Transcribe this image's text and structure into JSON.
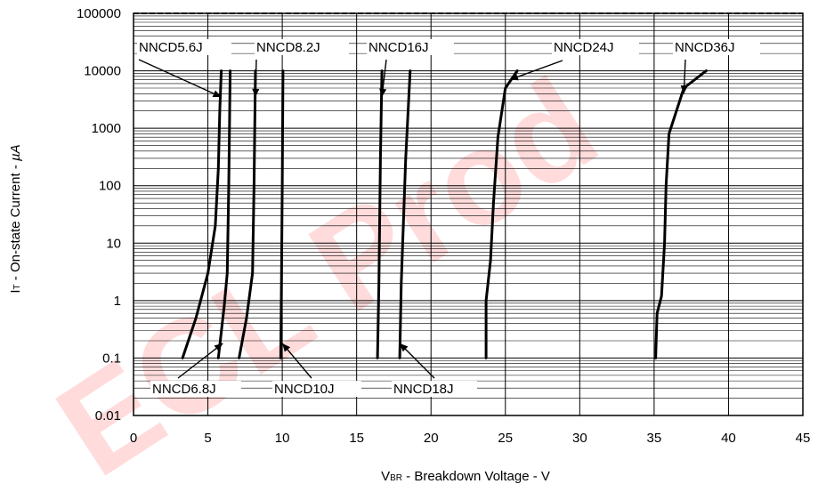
{
  "chart_data": {
    "type": "line",
    "title": "",
    "xlabel_main": "V",
    "xlabel_sub": "BR",
    "xlabel_rest": " - Breakdown Voltage - V",
    "ylabel_main": "I",
    "ylabel_sub": "T",
    "ylabel_rest": " - On-state Current - ",
    "ylabel_unit": "µA",
    "xlim": [
      0,
      45
    ],
    "ylim": [
      0.01,
      100000
    ],
    "y_scale": "log",
    "grid": true,
    "x_ticks": [
      "0",
      "5",
      "10",
      "15",
      "20",
      "25",
      "30",
      "35",
      "40",
      "45"
    ],
    "y_ticks": [
      "0.01",
      "0.1",
      "1",
      "10",
      "100",
      "1000",
      "10000",
      "100000"
    ],
    "series": [
      {
        "name": "NNCD5.6J",
        "points": [
          [
            3.3,
            0.1
          ],
          [
            4.2,
            0.5
          ],
          [
            5.0,
            3
          ],
          [
            5.5,
            20
          ],
          [
            5.7,
            200
          ],
          [
            5.8,
            2000
          ],
          [
            5.9,
            10000
          ]
        ]
      },
      {
        "name": "NNCD6.8J",
        "points": [
          [
            5.7,
            0.1
          ],
          [
            6.1,
            0.8
          ],
          [
            6.3,
            3
          ],
          [
            6.4,
            100
          ],
          [
            6.5,
            10000
          ]
        ]
      },
      {
        "name": "NNCD8.2J",
        "points": [
          [
            7.1,
            0.1
          ],
          [
            7.6,
            0.5
          ],
          [
            8.0,
            3
          ],
          [
            8.1,
            100
          ],
          [
            8.2,
            10000
          ]
        ]
      },
      {
        "name": "NNCD10J",
        "points": [
          [
            9.9,
            0.1
          ],
          [
            9.95,
            3
          ],
          [
            10.0,
            100
          ],
          [
            10.05,
            10000
          ]
        ]
      },
      {
        "name": "NNCD16J",
        "points": [
          [
            16.4,
            0.1
          ],
          [
            16.5,
            2
          ],
          [
            16.6,
            300
          ],
          [
            16.7,
            10000
          ]
        ]
      },
      {
        "name": "NNCD18J",
        "points": [
          [
            17.9,
            0.1
          ],
          [
            18.0,
            2
          ],
          [
            18.3,
            300
          ],
          [
            18.6,
            10000
          ]
        ]
      },
      {
        "name": "NNCD24J",
        "points": [
          [
            23.7,
            0.1
          ],
          [
            23.7,
            1
          ],
          [
            24.0,
            5
          ],
          [
            24.2,
            50
          ],
          [
            24.5,
            700
          ],
          [
            25.0,
            5000
          ],
          [
            25.8,
            10000
          ]
        ]
      },
      {
        "name": "NNCD36J",
        "points": [
          [
            35.1,
            0.1
          ],
          [
            35.2,
            0.6
          ],
          [
            35.5,
            1.2
          ],
          [
            35.7,
            10
          ],
          [
            35.8,
            100
          ],
          [
            36.0,
            800
          ],
          [
            37.0,
            5000
          ],
          [
            38.5,
            10000
          ]
        ]
      }
    ],
    "annotations": [
      {
        "text": "NNCD5.6J",
        "target": [
          5.9,
          3500
        ]
      },
      {
        "text": "NNCD8.2J",
        "target": [
          8.2,
          3500
        ]
      },
      {
        "text": "NNCD16J",
        "target": [
          16.7,
          3500
        ]
      },
      {
        "text": "NNCD24J",
        "target": [
          25.3,
          7000
        ]
      },
      {
        "text": "NNCD36J",
        "target": [
          37.0,
          4000
        ]
      },
      {
        "text": "NNCD6.8J",
        "target": [
          6.0,
          0.18
        ]
      },
      {
        "text": "NNCD10J",
        "target": [
          10.0,
          0.18
        ]
      },
      {
        "text": "NNCD18J",
        "target": [
          17.9,
          0.18
        ]
      }
    ]
  },
  "watermark": "ECL Prod",
  "colors": {
    "watermark": "#ff3b3b",
    "lines": "#000000",
    "grid": "#000000"
  }
}
